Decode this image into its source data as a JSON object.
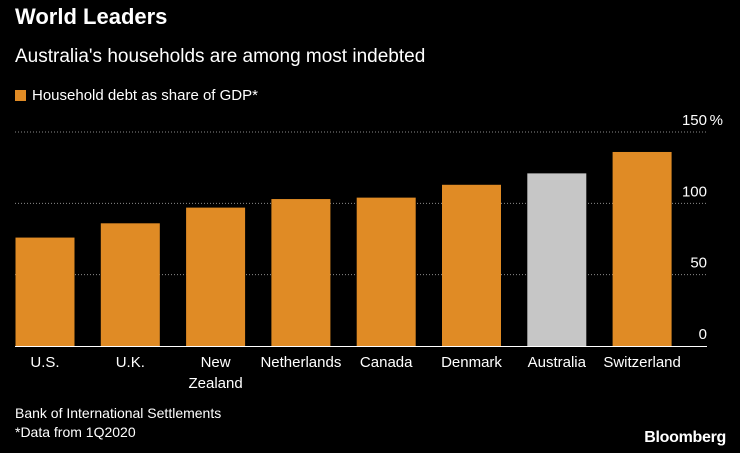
{
  "header": {
    "title": "World Leaders",
    "subtitle": "Australia's households are among most indebted"
  },
  "chart_data": {
    "type": "bar",
    "title": "World Leaders",
    "subtitle": "Australia's households are among most indebted",
    "categories": [
      "U.S.",
      "U.K.",
      "New Zealand",
      "Netherlands",
      "Canada",
      "Denmark",
      "Australia",
      "Switzerland"
    ],
    "category_lines": [
      [
        "U.S."
      ],
      [
        "U.K."
      ],
      [
        "New",
        "Zealand"
      ],
      [
        "Netherlands"
      ],
      [
        "Canada"
      ],
      [
        "Denmark"
      ],
      [
        "Australia"
      ],
      [
        "Switzerland"
      ]
    ],
    "series": [
      {
        "name": "Household debt as share of GDP*",
        "values": [
          76,
          86,
          97,
          103,
          104,
          113,
          121,
          136
        ]
      }
    ],
    "highlight_category": "Australia",
    "ylim": [
      0,
      150
    ],
    "yticks": [
      0,
      50,
      100,
      150
    ],
    "ytick_labels": [
      "0",
      "50",
      "100",
      "150"
    ],
    "yunit": "%",
    "legend_position": "top-left",
    "grid": true
  },
  "colors": {
    "bar": "#e08b25",
    "highlight": "#c6c6c6",
    "grid": "#8a8a8a",
    "axis": "#ffffff",
    "background": "#000000"
  },
  "footer": {
    "source": "Bank of International Settlements",
    "note": "*Data from 1Q2020",
    "brand": "Bloomberg"
  }
}
